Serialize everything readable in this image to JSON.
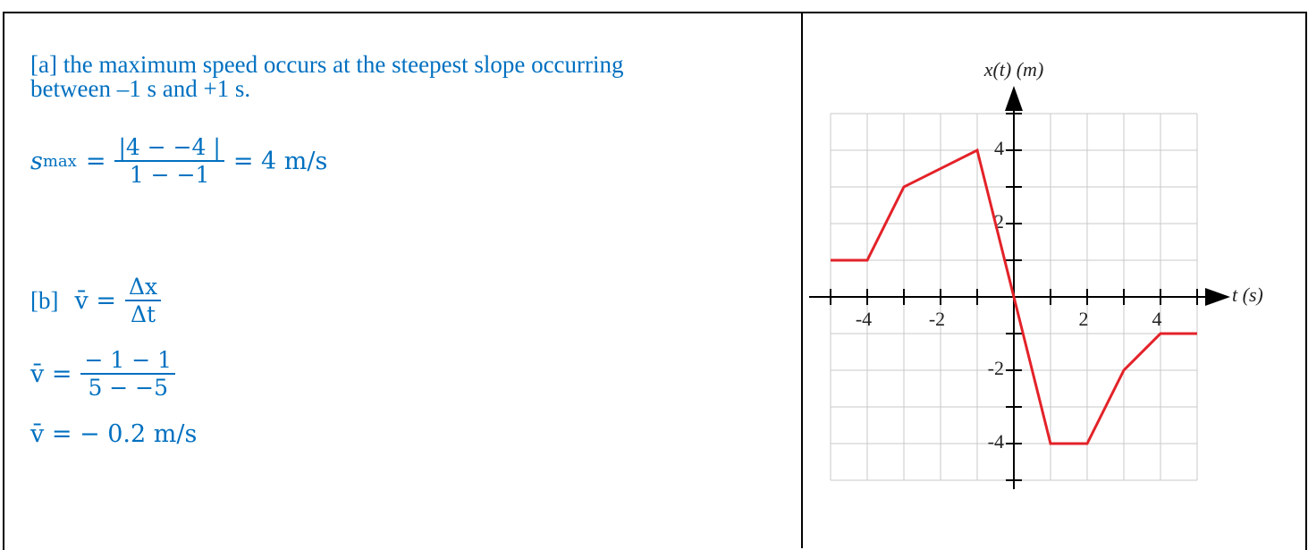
{
  "part_a": {
    "text_lines": [
      "[a] the maximum speed occurs at the steepest slope occurring",
      "between –1 s and +1 s."
    ],
    "formula": {
      "lhs": "s",
      "lhs_sub": "max",
      "equals": "=",
      "numerator": "|4 − −4 |",
      "denominator": "1 − −1",
      "result": "= 4  m/s"
    }
  },
  "part_b": {
    "label": "[b]",
    "eq1": {
      "lhs": "v̄ =",
      "numerator": "Δx",
      "denominator": "Δt"
    },
    "eq2": {
      "lhs": "v̄ =",
      "numerator": "− 1 − 1",
      "denominator": "5 −  −5"
    },
    "eq3": "v̄ = − 0.2  m/s"
  },
  "chart_data": {
    "type": "line",
    "x_label": "t (s)",
    "y_label": "x(t) (m)",
    "x": [
      -5,
      -4,
      -3,
      -1,
      0,
      1,
      2,
      3,
      4,
      5
    ],
    "values": [
      1,
      1,
      3,
      4,
      0,
      -4,
      -4,
      -2,
      -1,
      -1
    ],
    "color": "#e32229",
    "xlim": [
      -5,
      5
    ],
    "ylim": [
      -5,
      5
    ],
    "xticks": [
      -4,
      -2,
      2,
      4
    ],
    "yticks": [
      -4,
      -2,
      2,
      4
    ],
    "minor_ticks": [
      -5,
      -4,
      -3,
      -2,
      -1,
      0,
      1,
      2,
      3,
      4,
      5
    ],
    "grid": true
  }
}
